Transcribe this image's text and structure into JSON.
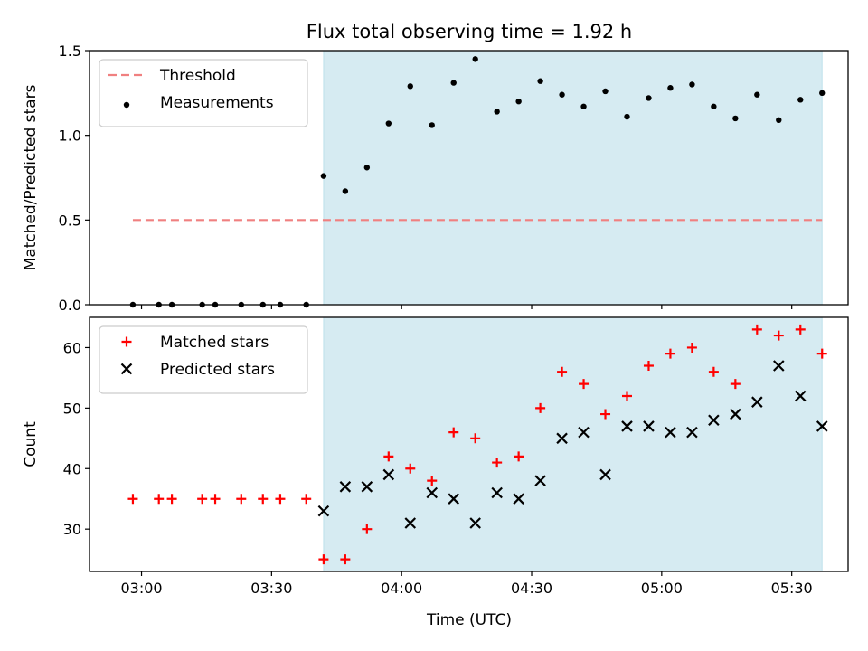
{
  "chart_data": {
    "title": "Flux total observing time = 1.92 h",
    "xlabel": "Time (UTC)",
    "x_ticks": [
      "03:00",
      "03:30",
      "04:00",
      "04:30",
      "05:00",
      "05:30"
    ],
    "x_range": [
      "02:48",
      "05:43"
    ],
    "highlight_span": {
      "start": "03:42",
      "end": "05:37",
      "color": "#add8e6"
    },
    "panels": [
      {
        "type": "scatter",
        "ylabel": "Matched/Predicted stars",
        "ylim": [
          0,
          1.5
        ],
        "y_ticks": [
          "0.0",
          "0.5",
          "1.0",
          "1.5"
        ],
        "legend": "top-left",
        "threshold": {
          "name": "Threshold",
          "value": 0.5,
          "x_start": "02:58",
          "x_end": "05:37",
          "color": "#f08080"
        },
        "series": [
          {
            "name": "Measurements",
            "color": "#000000",
            "marker": "dot",
            "x": [
              "02:58",
              "03:04",
              "03:07",
              "03:14",
              "03:17",
              "03:23",
              "03:28",
              "03:32",
              "03:38",
              "03:42",
              "03:47",
              "03:52",
              "03:57",
              "04:02",
              "04:07",
              "04:12",
              "04:17",
              "04:22",
              "04:27",
              "04:32",
              "04:37",
              "04:42",
              "04:47",
              "04:52",
              "04:57",
              "05:02",
              "05:07",
              "05:12",
              "05:17",
              "05:22",
              "05:27",
              "05:32",
              "05:37"
            ],
            "y": [
              0,
              0,
              0,
              0,
              0,
              0,
              0,
              0,
              0,
              0.76,
              0.67,
              0.81,
              1.07,
              1.29,
              1.06,
              1.31,
              1.45,
              1.14,
              1.2,
              1.32,
              1.24,
              1.17,
              1.26,
              1.11,
              1.22,
              1.28,
              1.3,
              1.17,
              1.1,
              1.24,
              1.09,
              1.21,
              1.25
            ]
          }
        ]
      },
      {
        "type": "scatter",
        "ylabel": "Count",
        "ylim": [
          23,
          65
        ],
        "y_ticks": [
          "30",
          "40",
          "50",
          "60"
        ],
        "legend": "top-left",
        "series": [
          {
            "name": "Matched stars",
            "color": "#ff0000",
            "marker": "plus",
            "x": [
              "02:58",
              "03:04",
              "03:07",
              "03:14",
              "03:17",
              "03:23",
              "03:28",
              "03:32",
              "03:38",
              "03:42",
              "03:47",
              "03:52",
              "03:57",
              "04:02",
              "04:07",
              "04:12",
              "04:17",
              "04:22",
              "04:27",
              "04:32",
              "04:37",
              "04:42",
              "04:47",
              "04:52",
              "04:57",
              "05:02",
              "05:07",
              "05:12",
              "05:17",
              "05:22",
              "05:27",
              "05:32",
              "05:37"
            ],
            "y": [
              35,
              35,
              35,
              35,
              35,
              35,
              35,
              35,
              35,
              25,
              25,
              30,
              42,
              40,
              38,
              46,
              45,
              41,
              42,
              50,
              56,
              54,
              49,
              52,
              57,
              59,
              60,
              56,
              54,
              63,
              62,
              63,
              59
            ]
          },
          {
            "name": "Predicted stars",
            "color": "#000000",
            "marker": "x",
            "x": [
              "03:42",
              "03:47",
              "03:52",
              "03:57",
              "04:02",
              "04:07",
              "04:12",
              "04:17",
              "04:22",
              "04:27",
              "04:32",
              "04:37",
              "04:42",
              "04:47",
              "04:52",
              "04:57",
              "05:02",
              "05:07",
              "05:12",
              "05:17",
              "05:22",
              "05:27",
              "05:32",
              "05:37"
            ],
            "y": [
              33,
              37,
              37,
              39,
              31,
              36,
              35,
              31,
              36,
              35,
              38,
              45,
              46,
              39,
              47,
              47,
              46,
              46,
              48,
              49,
              51,
              57,
              52,
              47
            ]
          }
        ]
      }
    ]
  }
}
